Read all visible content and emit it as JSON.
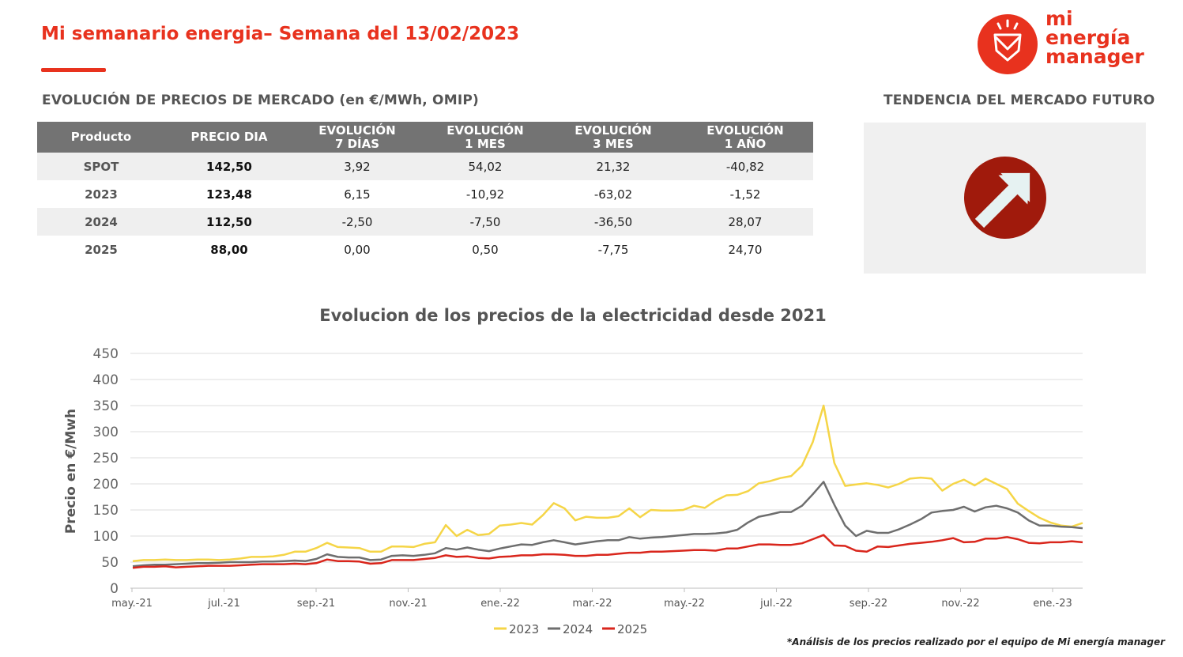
{
  "header": {
    "title": "Mi semanario energia– Semana del 13/02/2023",
    "logo_lines": [
      "mi",
      "energía",
      "manager"
    ]
  },
  "colors": {
    "brand": "#e8321e",
    "trend": "#a01a0c",
    "s2023": "#f5d547",
    "s2024": "#6e6e6e",
    "s2025": "#d9261c"
  },
  "market": {
    "heading": "EVOLUCIÓN DE PRECIOS DE MERCADO (en €/MWh, OMIP)",
    "columns": [
      "Producto",
      "PRECIO DIA",
      "EVOLUCIÓN\n7 DÍAS",
      "EVOLUCIÓN\n1 MES",
      "EVOLUCIÓN\n3 MES",
      "EVOLUCIÓN\n1 AÑO"
    ],
    "rows": [
      [
        "SPOT",
        "142,50",
        "3,92",
        "54,02",
        "21,32",
        "-40,82"
      ],
      [
        "2023",
        "123,48",
        "6,15",
        "-10,92",
        "-63,02",
        "-1,52"
      ],
      [
        "2024",
        "112,50",
        "-2,50",
        "-7,50",
        "-36,50",
        "28,07"
      ],
      [
        "2025",
        "88,00",
        "0,00",
        "0,50",
        "-7,75",
        "24,70"
      ]
    ]
  },
  "trend": {
    "heading": "TENDENCIA DEL MERCADO FUTURO",
    "icon": "arrow-up-right-icon"
  },
  "footnote": "*Análisis de los precios realizado por el equipo de Mi energía manager",
  "chart_data": {
    "type": "line",
    "title": "Evolucion de los precios de la electricidad desde 2021",
    "xlabel": "",
    "ylabel": "Precio en €/Mwh",
    "ylim": [
      0,
      450
    ],
    "yticks": [
      0,
      50,
      100,
      150,
      200,
      250,
      300,
      350,
      400,
      450
    ],
    "xtick_labels": [
      "may.-21",
      "jul.-21",
      "sep.-21",
      "nov.-21",
      "ene.-22",
      "mar.-22",
      "may.-22",
      "jul.-22",
      "sep.-22",
      "nov.-22",
      "ene.-23"
    ],
    "grid": true,
    "legend_position": "bottom",
    "series": [
      {
        "name": "2023",
        "values": [
          52,
          54,
          54,
          55,
          54,
          54,
          55,
          55,
          54,
          55,
          57,
          60,
          60,
          61,
          64,
          70,
          70,
          77,
          87,
          79,
          78,
          77,
          70,
          70,
          80,
          80,
          79,
          85,
          88,
          121,
          100,
          112,
          102,
          104,
          120,
          122,
          125,
          122,
          140,
          163,
          153,
          130,
          137,
          135,
          135,
          138,
          153,
          136,
          150,
          149,
          149,
          150,
          158,
          154,
          168,
          178,
          179,
          186,
          201,
          205,
          211,
          215,
          235,
          280,
          350,
          240,
          196,
          199,
          201,
          198,
          193,
          200,
          210,
          212,
          210,
          187,
          200,
          208,
          197,
          210,
          200,
          190,
          162,
          148,
          135,
          126,
          120,
          118,
          125
        ]
      },
      {
        "name": "2024",
        "values": [
          42,
          44,
          45,
          45,
          46,
          47,
          48,
          48,
          49,
          50,
          50,
          50,
          51,
          51,
          52,
          53,
          52,
          56,
          65,
          60,
          59,
          59,
          54,
          55,
          62,
          63,
          62,
          64,
          67,
          77,
          74,
          78,
          74,
          71,
          76,
          80,
          84,
          83,
          88,
          92,
          88,
          84,
          87,
          90,
          92,
          92,
          98,
          95,
          97,
          98,
          100,
          102,
          104,
          104,
          105,
          107,
          112,
          126,
          137,
          141,
          146,
          146,
          158,
          180,
          204,
          160,
          120,
          100,
          110,
          106,
          106,
          113,
          122,
          132,
          145,
          148,
          150,
          156,
          147,
          155,
          158,
          153,
          145,
          130,
          120,
          120,
          118,
          117,
          115
        ]
      },
      {
        "name": "2025",
        "values": [
          39,
          41,
          41,
          42,
          40,
          41,
          42,
          43,
          43,
          43,
          44,
          45,
          46,
          46,
          46,
          47,
          46,
          48,
          55,
          52,
          52,
          51,
          47,
          48,
          54,
          54,
          54,
          56,
          58,
          63,
          60,
          61,
          58,
          57,
          60,
          61,
          63,
          63,
          65,
          65,
          64,
          62,
          62,
          64,
          64,
          66,
          68,
          68,
          70,
          70,
          71,
          72,
          73,
          73,
          72,
          76,
          76,
          80,
          84,
          84,
          83,
          83,
          86,
          94,
          102,
          82,
          81,
          72,
          70,
          80,
          79,
          82,
          85,
          87,
          89,
          92,
          96,
          88,
          89,
          95,
          95,
          98,
          94,
          87,
          86,
          88,
          88,
          90,
          88
        ]
      }
    ]
  }
}
